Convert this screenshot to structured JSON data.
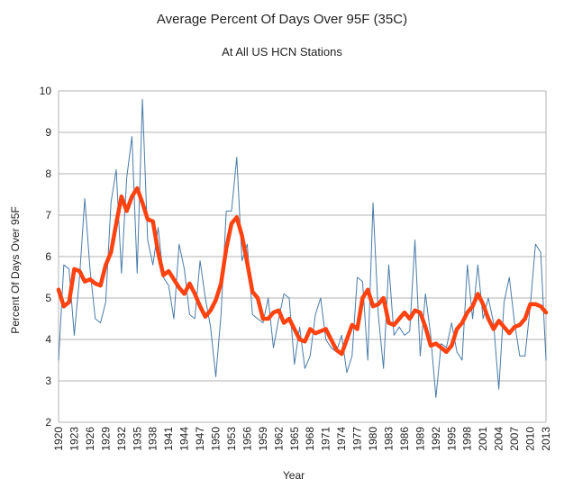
{
  "chart_data": {
    "type": "line",
    "title": "Average Percent Of Days Over 95F (35C)",
    "subtitle": "At All US HCN Stations",
    "xlabel": "Year",
    "ylabel": "Percent Of Days Over 95F",
    "ylim": [
      2,
      10
    ],
    "xlim": [
      1920,
      2013
    ],
    "yticks": [
      2,
      3,
      4,
      5,
      6,
      7,
      8,
      9,
      10
    ],
    "xticks": [
      1920,
      1923,
      1926,
      1929,
      1932,
      1935,
      1938,
      1941,
      1944,
      1947,
      1950,
      1953,
      1956,
      1959,
      1962,
      1965,
      1968,
      1971,
      1974,
      1977,
      1980,
      1983,
      1986,
      1989,
      1992,
      1995,
      1998,
      2001,
      2004,
      2007,
      2010,
      2013
    ],
    "grid": true,
    "colors": {
      "annual": "#4a7ba8",
      "smoothed": "#ff4210"
    },
    "x": [
      1920,
      1921,
      1922,
      1923,
      1924,
      1925,
      1926,
      1927,
      1928,
      1929,
      1930,
      1931,
      1932,
      1933,
      1934,
      1935,
      1936,
      1937,
      1938,
      1939,
      1940,
      1941,
      1942,
      1943,
      1944,
      1945,
      1946,
      1947,
      1948,
      1949,
      1950,
      1951,
      1952,
      1953,
      1954,
      1955,
      1956,
      1957,
      1958,
      1959,
      1960,
      1961,
      1962,
      1963,
      1964,
      1965,
      1966,
      1967,
      1968,
      1969,
      1970,
      1971,
      1972,
      1973,
      1974,
      1975,
      1976,
      1977,
      1978,
      1979,
      1980,
      1981,
      1982,
      1983,
      1984,
      1985,
      1986,
      1987,
      1988,
      1989,
      1990,
      1991,
      1992,
      1993,
      1994,
      1995,
      1996,
      1997,
      1998,
      1999,
      2000,
      2001,
      2002,
      2003,
      2004,
      2005,
      2006,
      2007,
      2008,
      2009,
      2010,
      2011,
      2012,
      2013
    ],
    "series": [
      {
        "values": [
          3.5,
          5.8,
          5.7,
          4.1,
          5.5,
          7.4,
          5.7,
          4.5,
          4.4,
          4.9,
          7.3,
          8.1,
          5.6,
          7.9,
          8.9,
          5.6,
          9.8,
          6.4,
          5.8,
          6.7,
          5.5,
          5.3,
          4.5,
          6.3,
          5.7,
          4.6,
          4.5,
          5.9,
          5.0,
          4.3,
          3.1,
          4.6,
          7.1,
          7.1,
          8.4,
          5.9,
          6.3,
          4.6,
          4.5,
          4.4,
          5.0,
          3.8,
          4.5,
          5.1,
          5.0,
          3.4,
          4.3,
          3.3,
          3.6,
          4.6,
          5.0,
          4.0,
          3.8,
          3.7,
          4.1,
          3.2,
          3.6,
          5.5,
          5.4,
          3.5,
          7.3,
          4.6,
          3.3,
          5.8,
          4.1,
          4.3,
          4.1,
          4.2,
          6.4,
          3.6,
          5.1,
          4.1,
          2.6,
          3.9,
          3.8,
          4.4,
          3.7,
          3.5,
          5.8,
          4.5,
          5.8,
          4.5,
          5.0,
          4.4,
          2.8,
          4.9,
          5.5,
          4.4,
          3.6,
          3.6,
          4.8,
          6.3,
          6.1,
          3.5
        ]
      },
      {
        "values": [
          5.2,
          4.8,
          4.9,
          5.7,
          5.65,
          5.4,
          5.45,
          5.35,
          5.3,
          5.8,
          6.1,
          6.8,
          7.45,
          7.1,
          7.45,
          7.65,
          7.3,
          6.9,
          6.85,
          6.1,
          5.55,
          5.65,
          5.45,
          5.25,
          5.1,
          5.35,
          5.1,
          4.8,
          4.55,
          4.7,
          4.95,
          5.35,
          6.2,
          6.8,
          6.95,
          6.5,
          5.85,
          5.15,
          5.0,
          4.5,
          4.5,
          4.65,
          4.7,
          4.4,
          4.5,
          4.25,
          4.0,
          3.95,
          4.25,
          4.15,
          4.2,
          4.25,
          4.0,
          3.75,
          3.65,
          4.0,
          4.35,
          4.25,
          5.0,
          5.2,
          4.8,
          4.85,
          5.0,
          4.4,
          4.35,
          4.5,
          4.65,
          4.5,
          4.7,
          4.65,
          4.3,
          3.85,
          3.9,
          3.8,
          3.7,
          3.85,
          4.25,
          4.4,
          4.65,
          4.8,
          5.1,
          4.85,
          4.5,
          4.25,
          4.45,
          4.3,
          4.15,
          4.3,
          4.35,
          4.5,
          4.85,
          4.85,
          4.8,
          4.65
        ]
      }
    ]
  }
}
